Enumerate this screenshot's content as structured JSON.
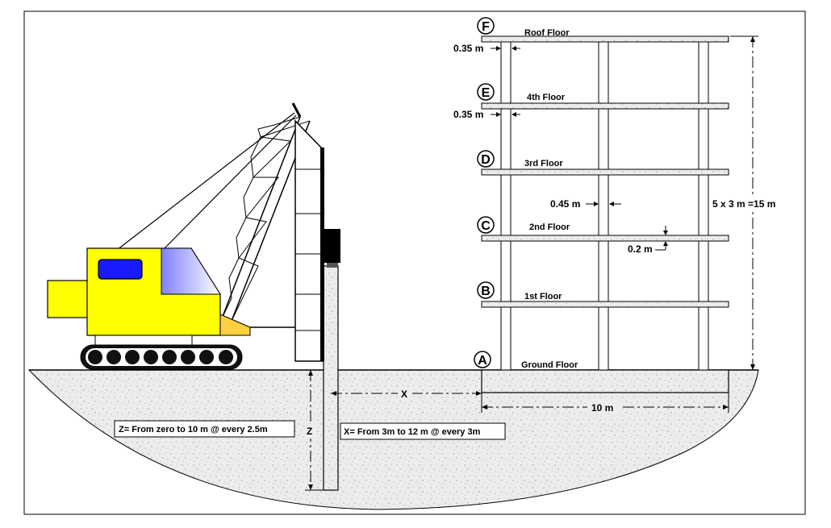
{
  "floors": [
    {
      "letter": "F",
      "name": "Roof Floor"
    },
    {
      "letter": "E",
      "name": "4th Floor"
    },
    {
      "letter": "D",
      "name": "3rd Floor"
    },
    {
      "letter": "C",
      "name": "2nd Floor"
    },
    {
      "letter": "B",
      "name": "1st Floor"
    },
    {
      "letter": "A",
      "name": "Ground Floor"
    }
  ],
  "dimensions": {
    "slab_edge_f": "0.35 m",
    "slab_edge_e": "0.35 m",
    "column_width": "0.45 m",
    "slab_thickness": "0.2 m",
    "building_height": "5 x 3 m =15 m",
    "building_width": "10 m",
    "distance_x": "X",
    "depth_z": "Z"
  },
  "notes": {
    "z_range": "Z= From zero to 10 m @ every 2.5m",
    "x_range": "X= From 3m to 12 m @ every 3m"
  },
  "colors": {
    "crane_body": "#ffff00",
    "crane_window": "#1a1aff",
    "crane_counterweight_face": "#b0b0ff",
    "outline": "#000000",
    "soil": "#ededed"
  }
}
